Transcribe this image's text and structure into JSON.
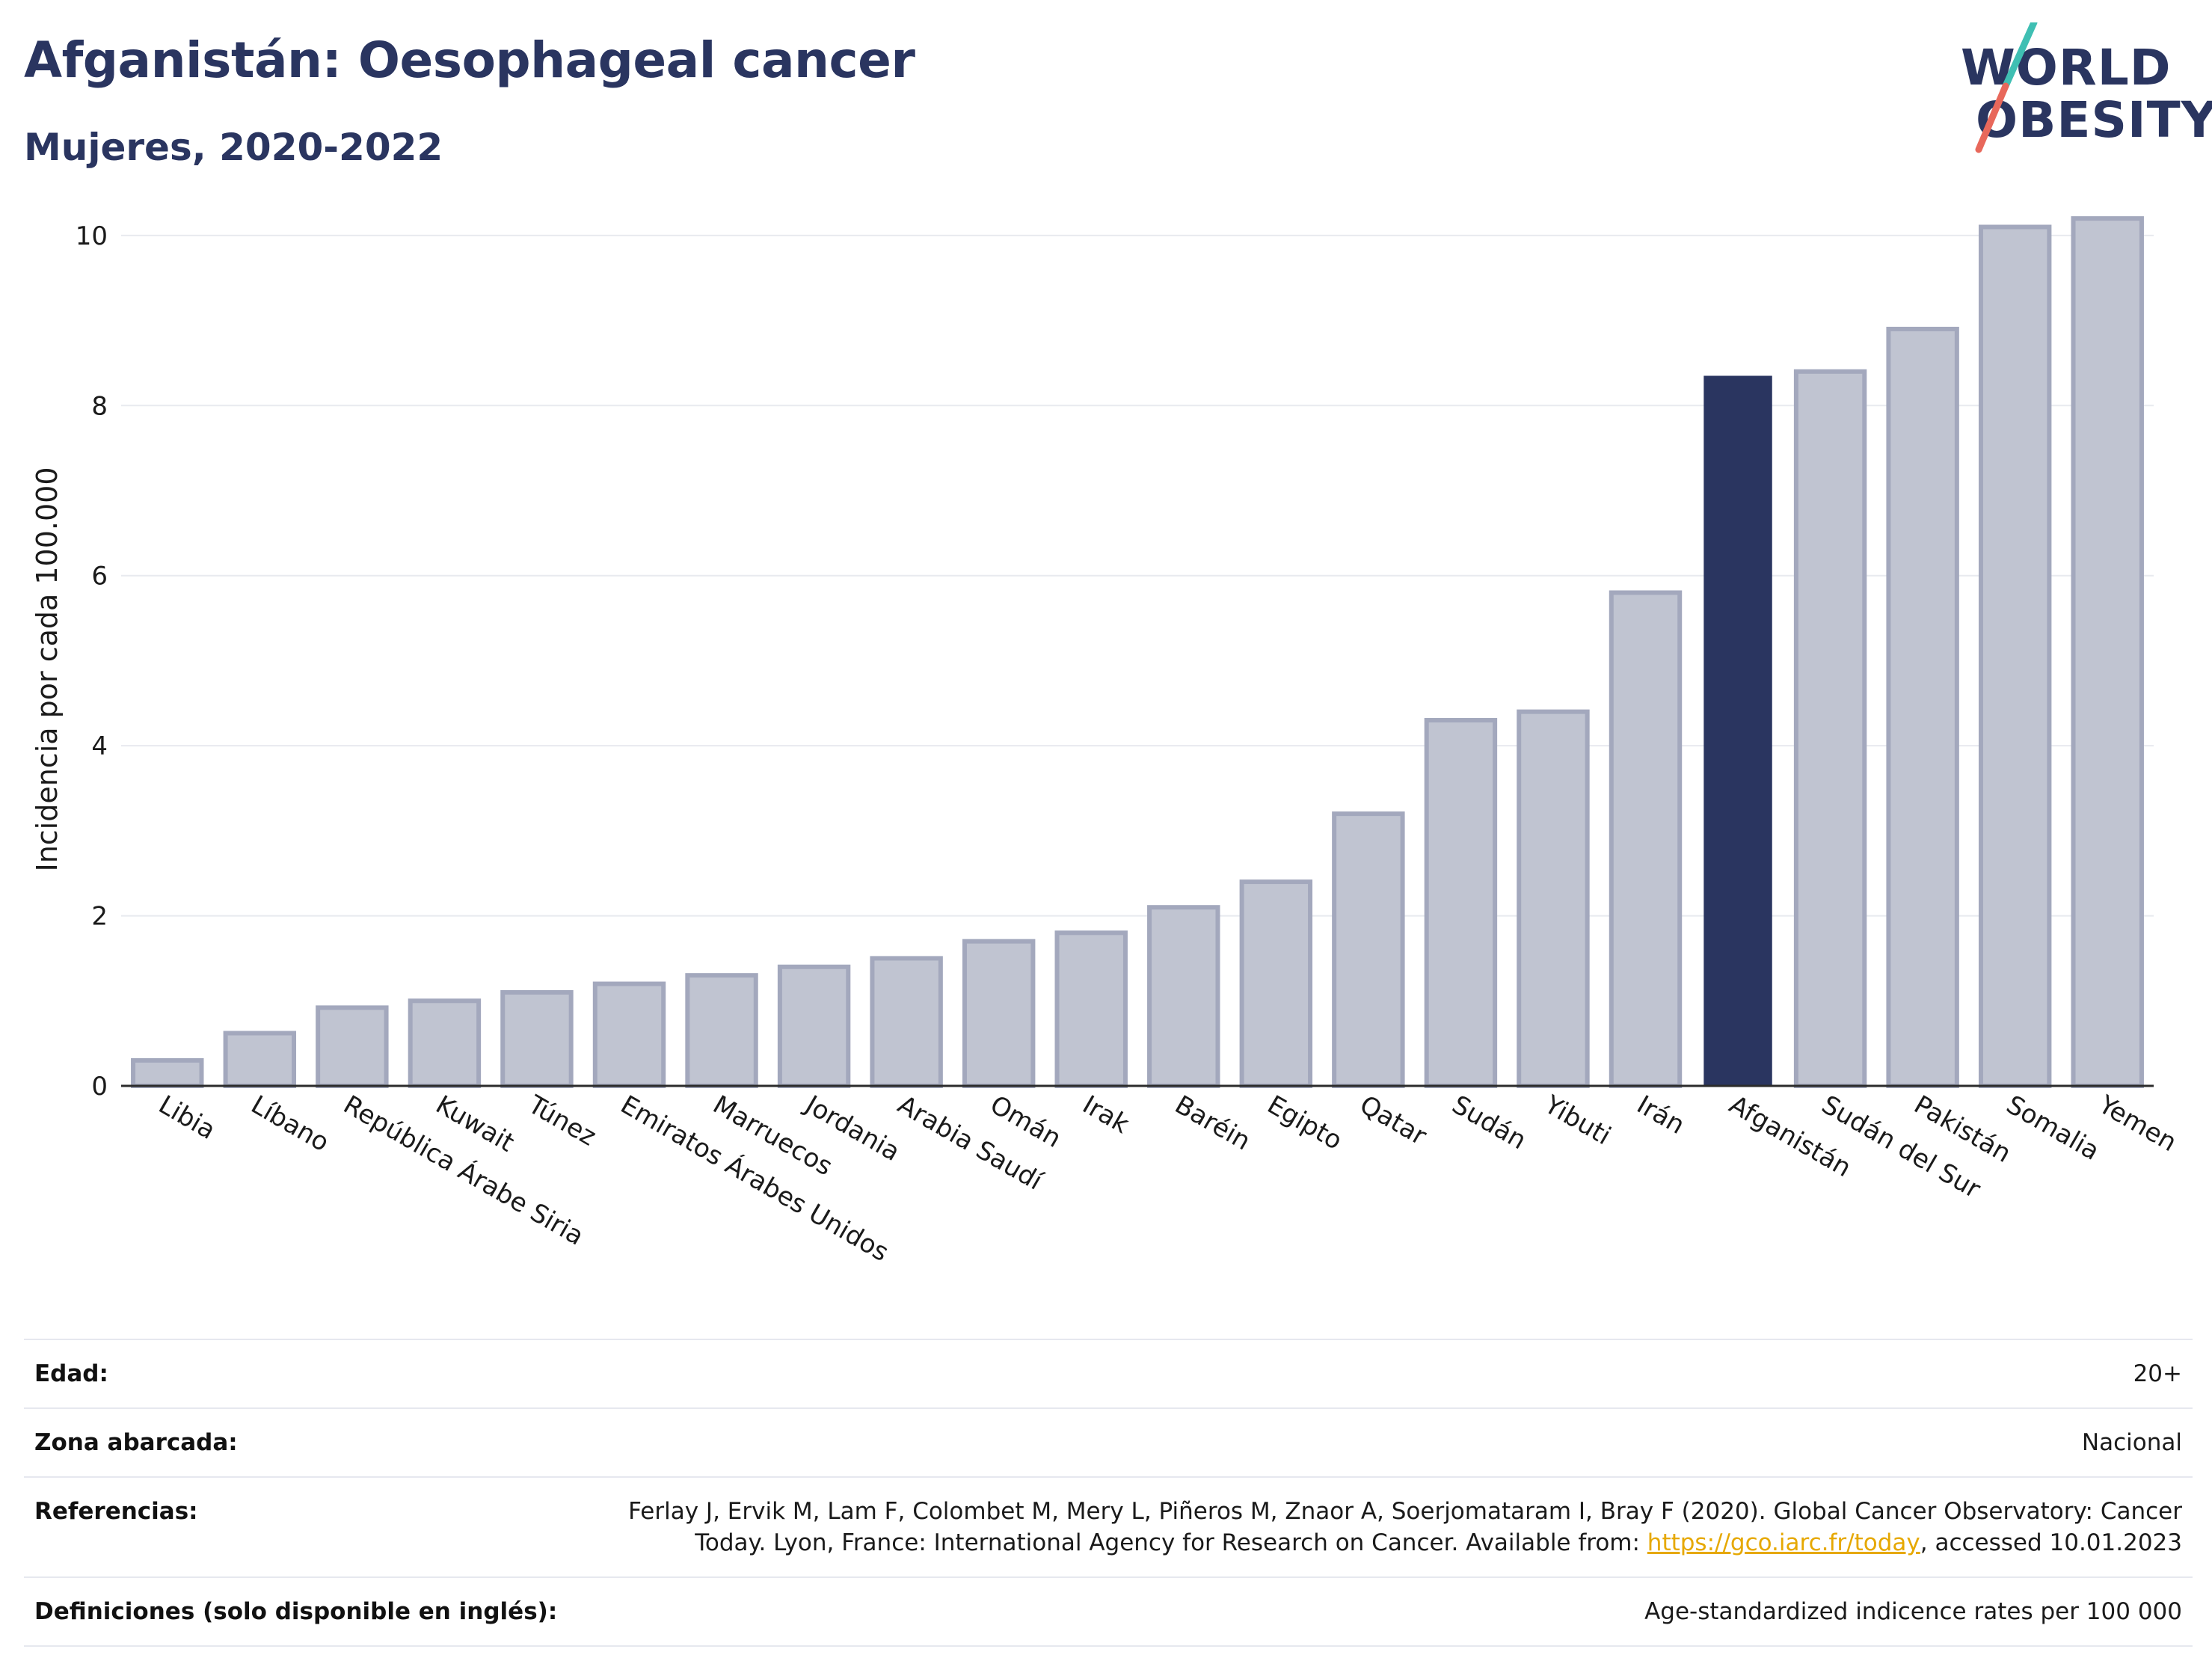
{
  "header": {
    "title": "Afganistán: Oesophageal cancer",
    "subtitle": "Mujeres, 2020-2022"
  },
  "logo": {
    "line1": "WORLD",
    "line2": "OBESITY",
    "accent_colors": [
      "#3fbfb3",
      "#e8685b"
    ]
  },
  "colors": {
    "highlight": "#2a3560",
    "bar_fill": "#c0c4d1",
    "bar_stroke": "#a3a8bd",
    "grid": "#e8eaef",
    "link": "#e6a800"
  },
  "chart_data": {
    "type": "bar",
    "title": "Afganistán: Oesophageal cancer",
    "subtitle": "Mujeres, 2020-2022",
    "xlabel": "",
    "ylabel": "Incidencia por cada 100.000",
    "ylim": [
      0,
      10.5
    ],
    "yticks": [
      0,
      2,
      4,
      6,
      8,
      10
    ],
    "grid": true,
    "highlight": "Afganistán",
    "categories": [
      "Libia",
      "Líbano",
      "República Árabe Siria",
      "Kuwait",
      "Túnez",
      "Emiratos Árabes Unidos",
      "Marruecos",
      "Jordania",
      "Arabia Saudí",
      "Omán",
      "Irak",
      "Baréin",
      "Egipto",
      "Qatar",
      "Sudán",
      "Yibuti",
      "Irán",
      "Afganistán",
      "Sudán del Sur",
      "Pakistán",
      "Somalia",
      "Yemen"
    ],
    "values": [
      0.3,
      0.62,
      0.92,
      1.0,
      1.1,
      1.2,
      1.3,
      1.4,
      1.5,
      1.7,
      1.8,
      2.1,
      2.4,
      3.2,
      4.3,
      4.4,
      5.8,
      8.35,
      8.4,
      8.9,
      10.1,
      10.2
    ]
  },
  "info": {
    "age_label": "Edad:",
    "age_value": "20+",
    "area_label": "Zona abarcada:",
    "area_value": "Nacional",
    "refs_label": "Referencias:",
    "refs_text_1": "Ferlay J, Ervik M, Lam F, Colombet M, Mery L, Piñeros M, Znaor A, Soerjomataram I, Bray F (2020). Global Cancer Observatory: Cancer Today. Lyon, France: International Agency for Research on Cancer. Available from: ",
    "refs_link": "https://gco.iarc.fr/today",
    "refs_text_2": ", accessed 10.01.2023",
    "defs_label": "Definiciones (solo disponible en inglés):",
    "defs_value": "Age-standardized indicence rates per 100 000"
  }
}
